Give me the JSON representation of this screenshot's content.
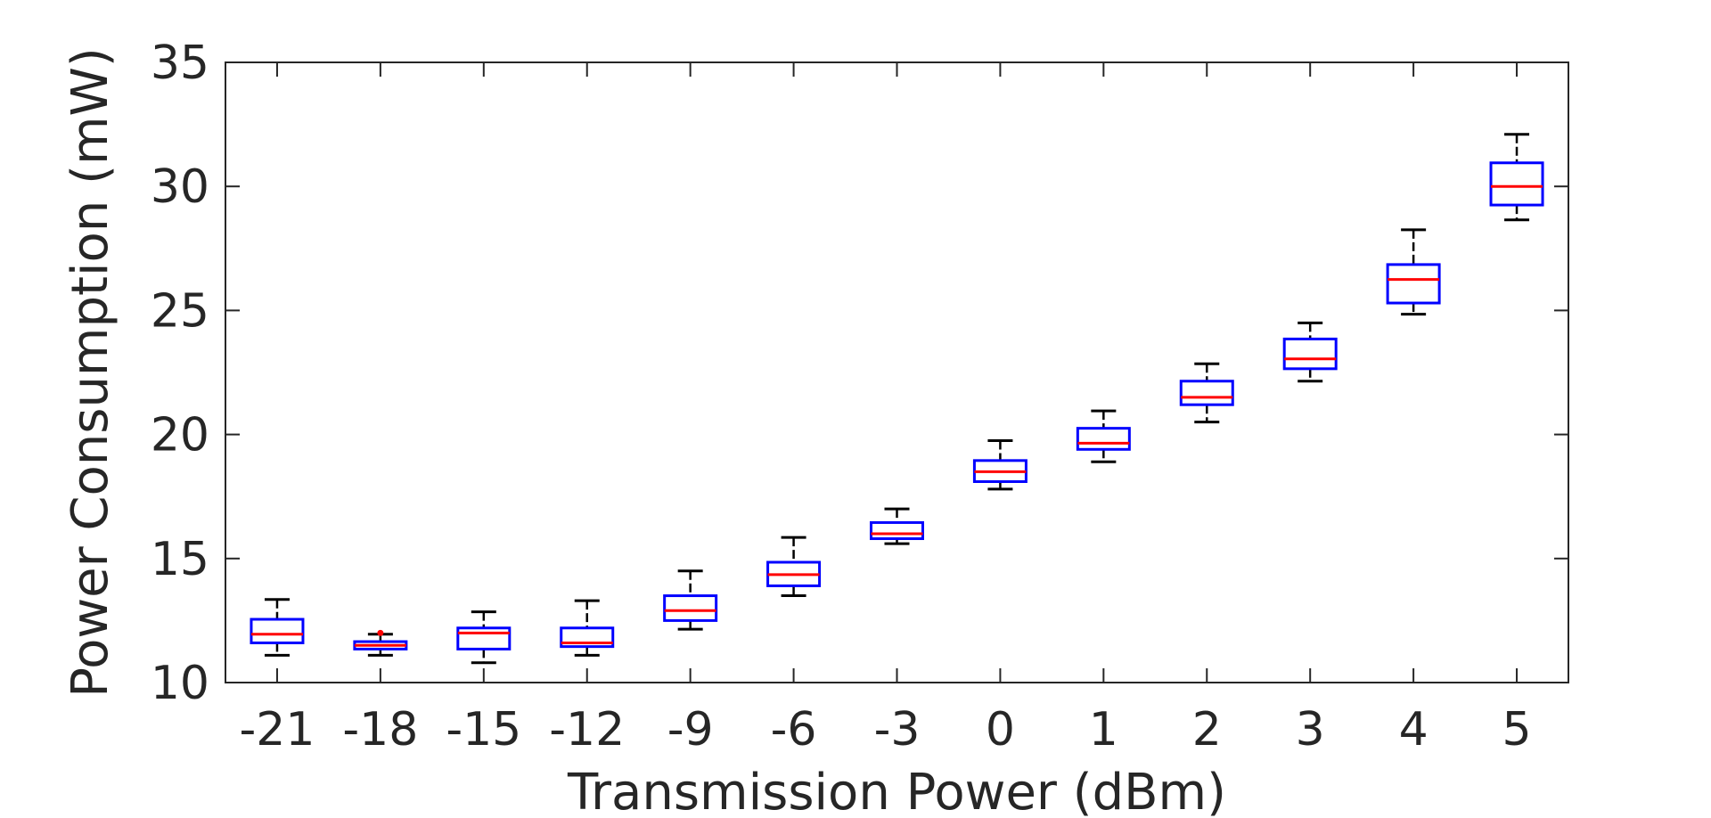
{
  "chart_data": {
    "type": "box",
    "xlabel": "Transmission Power (dBm)",
    "ylabel": "Power Consumption (mW)",
    "ylim": [
      10,
      35
    ],
    "yticks": [
      10,
      15,
      20,
      25,
      30,
      35
    ],
    "categories": [
      "-21",
      "-18",
      "-15",
      "-12",
      "-9",
      "-6",
      "-3",
      "0",
      "1",
      "2",
      "3",
      "4",
      "5"
    ],
    "boxes": [
      {
        "min": 11.1,
        "q1": 11.6,
        "median": 11.95,
        "q3": 12.55,
        "max": 13.35
      },
      {
        "min": 11.1,
        "q1": 11.35,
        "median": 11.5,
        "q3": 11.65,
        "max": 11.95,
        "outliers": [
          12.0
        ]
      },
      {
        "min": 10.8,
        "q1": 11.35,
        "median": 12.0,
        "q3": 12.2,
        "max": 12.85
      },
      {
        "min": 11.1,
        "q1": 11.45,
        "median": 11.6,
        "q3": 12.2,
        "max": 13.3
      },
      {
        "min": 12.15,
        "q1": 12.5,
        "median": 12.9,
        "q3": 13.5,
        "max": 14.5
      },
      {
        "min": 13.5,
        "q1": 13.9,
        "median": 14.35,
        "q3": 14.85,
        "max": 15.85
      },
      {
        "min": 15.6,
        "q1": 15.8,
        "median": 16.0,
        "q3": 16.45,
        "max": 17.0
      },
      {
        "min": 17.8,
        "q1": 18.1,
        "median": 18.5,
        "q3": 18.95,
        "max": 19.75
      },
      {
        "min": 18.9,
        "q1": 19.4,
        "median": 19.65,
        "q3": 20.25,
        "max": 20.95
      },
      {
        "min": 20.5,
        "q1": 21.2,
        "median": 21.5,
        "q3": 22.15,
        "max": 22.85
      },
      {
        "min": 22.15,
        "q1": 22.65,
        "median": 23.05,
        "q3": 23.85,
        "max": 24.5
      },
      {
        "min": 24.85,
        "q1": 25.3,
        "median": 26.25,
        "q3": 26.85,
        "max": 28.25
      },
      {
        "min": 28.65,
        "q1": 29.25,
        "median": 30.0,
        "q3": 30.95,
        "max": 32.1
      }
    ],
    "grid": false,
    "colors": {
      "box": "#0000ff",
      "median": "#ff0000",
      "whisker": "#000000",
      "outlier": "#ff0000",
      "axis": "#262626"
    }
  }
}
